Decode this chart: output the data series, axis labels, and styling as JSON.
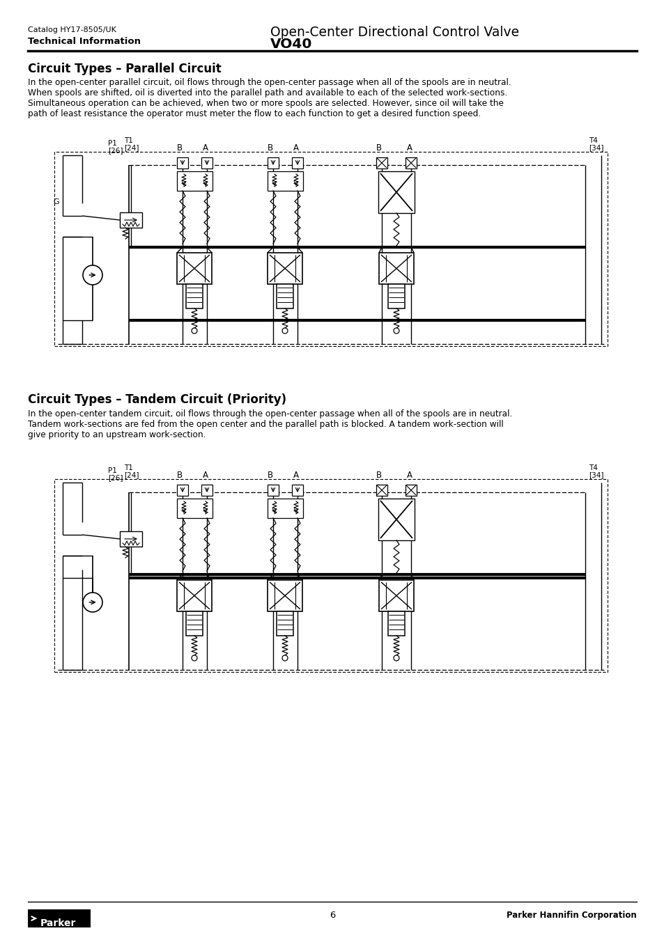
{
  "catalog": "Catalog HY17-8505/UK",
  "tech_info": "Technical Information",
  "title_right_line1": "Open-Center Directional Control Valve",
  "title_right_line2": "VO40",
  "section1_title": "Circuit Types – Parallel Circuit",
  "section1_body_lines": [
    "In the open-center parallel circuit, oil flows through the open-center passage when all of the spools are in neutral.",
    "When spools are shifted, oil is diverted into the parallel path and available to each of the selected work-sections.",
    "Simultaneous operation can be achieved, when two or more spools are selected. However, since oil will take the",
    "path of least resistance the operator must meter the flow to each function to get a desired function speed."
  ],
  "section2_title": "Circuit Types – Tandem Circuit (Priority)",
  "section2_body_lines": [
    "In the open-center tandem circuit, oil flows through the open-center passage when all of the spools are in neutral.",
    "Tandem work-sections are fed from the open center and the parallel path is blocked. A tandem work-section will",
    "give priority to an upstream work-section."
  ],
  "page_number": "6",
  "footer_right": "Parker Hannifin Corporation",
  "bg_color": "#ffffff"
}
